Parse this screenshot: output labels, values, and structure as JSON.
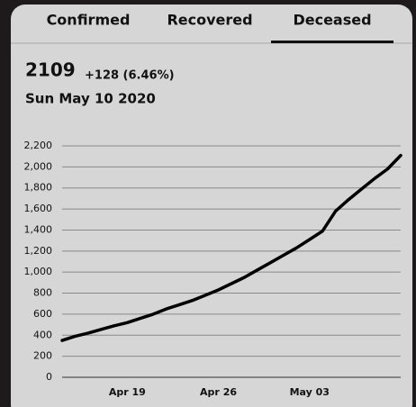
{
  "tabs": [
    {
      "label": "Confirmed",
      "selected": false
    },
    {
      "label": "Recovered",
      "selected": false
    },
    {
      "label": "Deceased",
      "selected": true
    }
  ],
  "summary": {
    "value": "2109",
    "change": "+128 (6.46%)",
    "date": "Sun May 10 2020"
  },
  "chart_data": {
    "type": "line",
    "color": "#000000",
    "categories": [
      null,
      null,
      null,
      null,
      null,
      "Apr 19",
      null,
      null,
      null,
      null,
      null,
      null,
      "Apr 26",
      null,
      null,
      null,
      null,
      null,
      null,
      "May 03",
      null,
      null,
      null,
      null,
      null,
      null,
      null
    ],
    "values": [
      350,
      390,
      420,
      455,
      490,
      520,
      560,
      600,
      650,
      690,
      730,
      780,
      830,
      890,
      950,
      1020,
      1090,
      1160,
      1230,
      1310,
      1390,
      1580,
      1690,
      1790,
      1890,
      1981,
      2109
    ],
    "ylim": [
      0,
      2200
    ],
    "yticks": [
      0,
      200,
      400,
      600,
      800,
      {
        "value": 1000,
        "label": "1,000"
      },
      {
        "value": 1200,
        "label": "1,200"
      },
      {
        "value": 1400,
        "label": "1,400"
      },
      {
        "value": 1600,
        "label": "1,600"
      },
      {
        "value": 1800,
        "label": "1,800"
      },
      {
        "value": 2000,
        "label": "2,000"
      },
      {
        "value": 2200,
        "label": "2,200"
      }
    ],
    "grid": true
  }
}
